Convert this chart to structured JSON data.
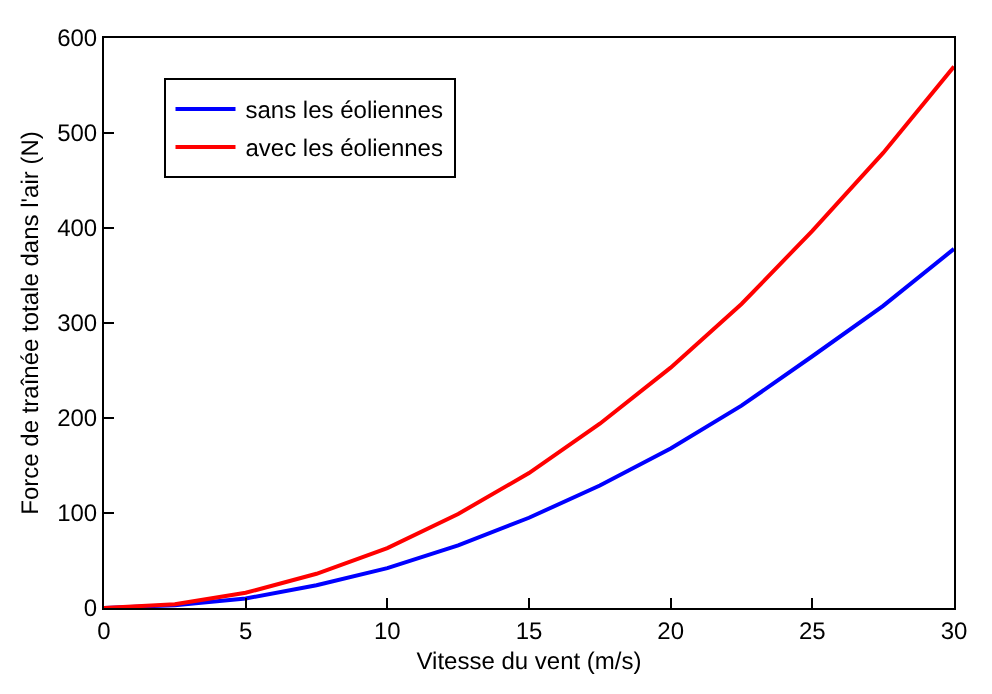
{
  "chart_data": {
    "type": "line",
    "xlabel": "Vitesse du vent (m/s)",
    "ylabel": "Force de traînée totale dans l'air (N)",
    "x": [
      0,
      2.5,
      5,
      7.5,
      10,
      12.5,
      15,
      17.5,
      20,
      22.5,
      25,
      27.5,
      30
    ],
    "series": [
      {
        "name": "sans les éoliennes",
        "color": "#0000ff",
        "values": [
          0,
          3,
          10,
          24,
          42,
          66,
          95,
          129,
          168,
          213,
          265,
          318,
          378
        ]
      },
      {
        "name": "avec les éoliennes",
        "color": "#ff0000",
        "values": [
          0,
          4,
          16,
          36,
          63,
          99,
          142,
          194,
          253,
          320,
          397,
          479,
          570
        ]
      }
    ],
    "xlim": [
      0,
      30
    ],
    "xticks": [
      0,
      5,
      10,
      15,
      20,
      25,
      30
    ],
    "ylim": [
      0,
      600
    ],
    "yticks": [
      0,
      100,
      200,
      300,
      400,
      500,
      600
    ],
    "legend": "top left",
    "marker": "none",
    "line_style": "solid"
  }
}
